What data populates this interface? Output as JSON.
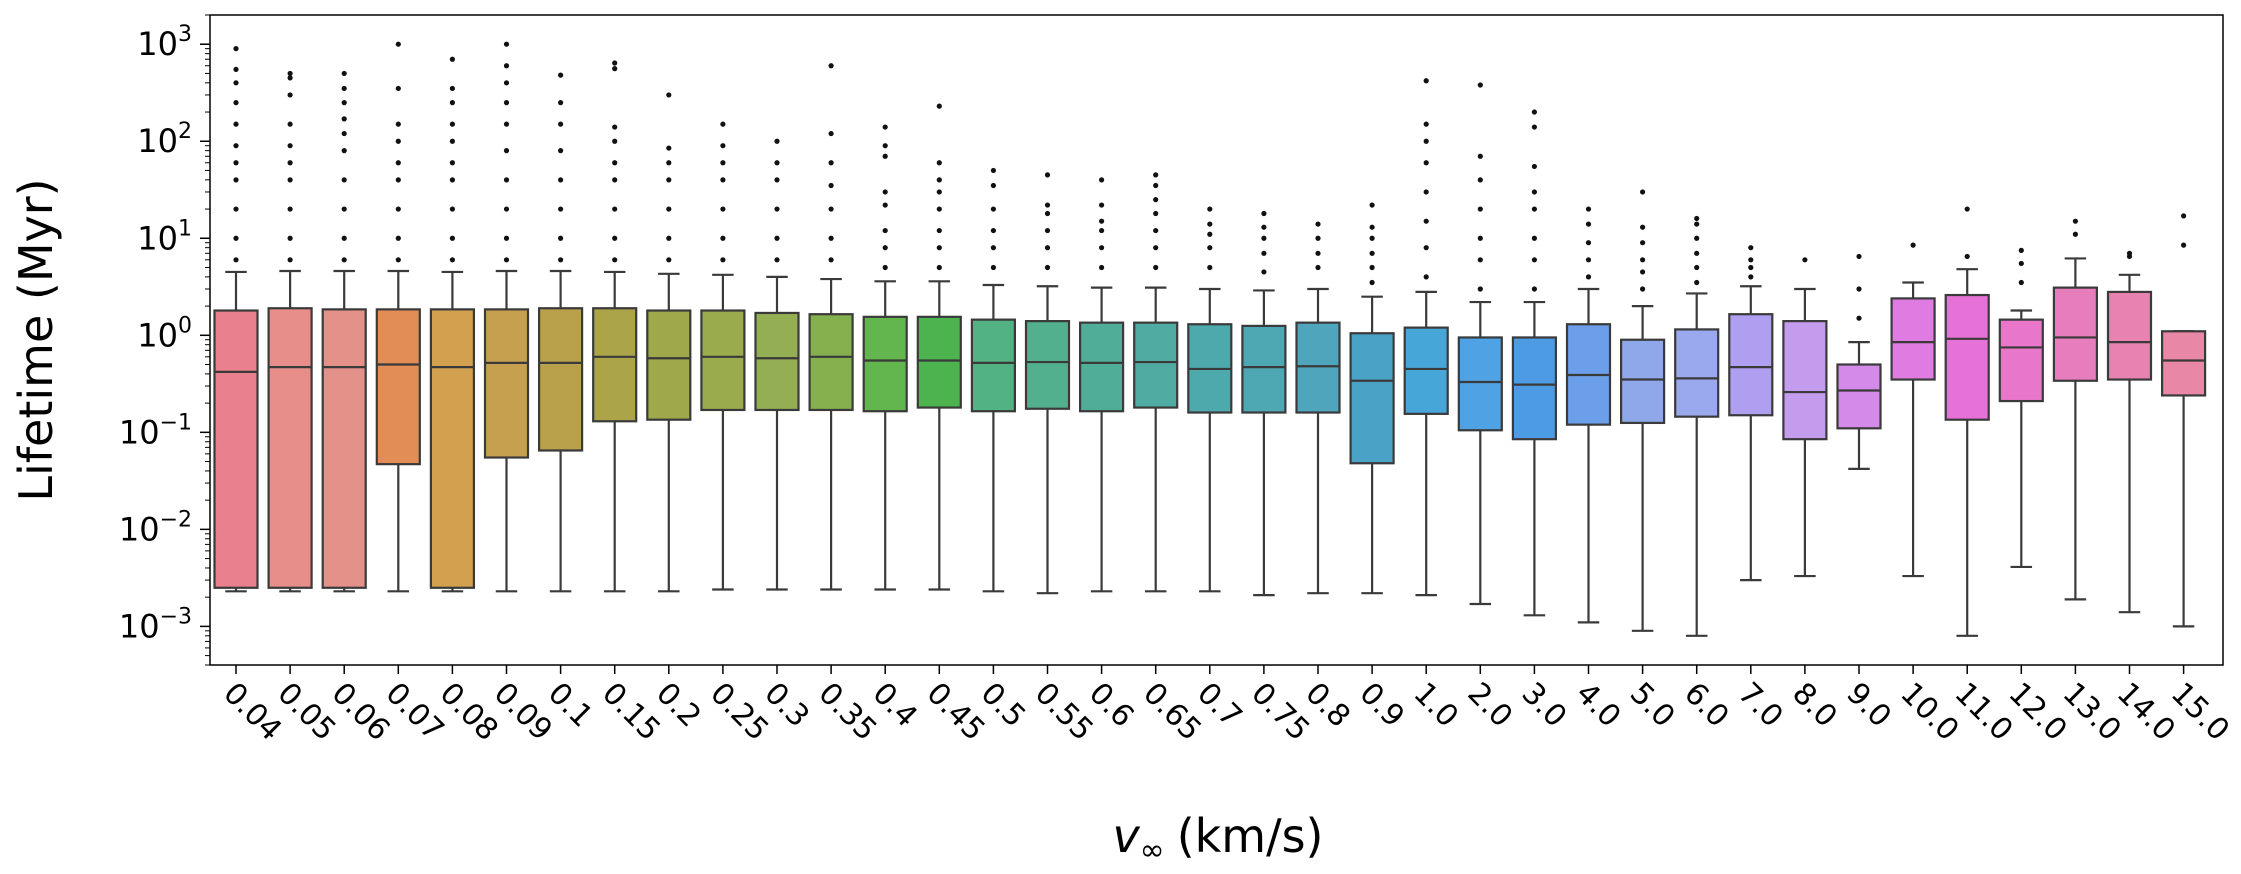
{
  "chart_data": {
    "type": "boxplot",
    "xlabel_symbol": "v",
    "xlabel_subscript": "∞",
    "xlabel_unit": "(km/s)",
    "ylabel": "Lifetime (Myr)",
    "yscale": "log",
    "ylim": [
      0.0004,
      2000
    ],
    "yticks": [
      {
        "value": 0.001,
        "base": "10",
        "exp": "−3"
      },
      {
        "value": 0.01,
        "base": "10",
        "exp": "−2"
      },
      {
        "value": 0.1,
        "base": "10",
        "exp": "−1"
      },
      {
        "value": 1,
        "base": "10",
        "exp": "0"
      },
      {
        "value": 10,
        "base": "10",
        "exp": "1"
      },
      {
        "value": 100,
        "base": "10",
        "exp": "2"
      },
      {
        "value": 1000,
        "base": "10",
        "exp": "3"
      }
    ],
    "grid": false,
    "categories": [
      "0.04",
      "0.05",
      "0.06",
      "0.07",
      "0.08",
      "0.09",
      "0.1",
      "0.15",
      "0.2",
      "0.25",
      "0.3",
      "0.35",
      "0.4",
      "0.45",
      "0.5",
      "0.55",
      "0.6",
      "0.65",
      "0.7",
      "0.75",
      "0.8",
      "0.9",
      "1.0",
      "2.0",
      "3.0",
      "4.0",
      "5.0",
      "6.0",
      "7.0",
      "8.0",
      "9.0",
      "10.0",
      "11.0",
      "12.0",
      "13.0",
      "14.0",
      "15.0"
    ],
    "colors": [
      "#e8808d",
      "#e78e8a",
      "#e49189",
      "#e18d55",
      "#d3a050",
      "#c6a04e",
      "#b9a04b",
      "#aba448",
      "#9fa84a",
      "#9aab4d",
      "#94ae54",
      "#85b04e",
      "#63b54d",
      "#4cb34e",
      "#52b283",
      "#52b08e",
      "#50ad98",
      "#50aba3",
      "#4da9ac",
      "#4ea8b4",
      "#4fa5bb",
      "#4aa3c7",
      "#47a6d8",
      "#4fa2e3",
      "#4d9be3",
      "#6c9fe9",
      "#8ea8e9",
      "#9aa8ee",
      "#b09ef0",
      "#c49cee",
      "#d38ae8",
      "#e07be2",
      "#e672d8",
      "#e877ca",
      "#e87dbd",
      "#e882b0",
      "#e887a6"
    ],
    "boxes": [
      {
        "q1": 0.0025,
        "median": 0.42,
        "q3": 1.8,
        "whislo": 0.0023,
        "whishi": 4.5,
        "fliers": [
          6,
          10,
          20,
          40,
          60,
          90,
          150,
          250,
          400,
          550,
          900
        ]
      },
      {
        "q1": 0.0025,
        "median": 0.47,
        "q3": 1.9,
        "whislo": 0.0023,
        "whishi": 4.6,
        "fliers": [
          6,
          10,
          20,
          40,
          60,
          90,
          150,
          300,
          450,
          500
        ]
      },
      {
        "q1": 0.0025,
        "median": 0.47,
        "q3": 1.85,
        "whislo": 0.0023,
        "whishi": 4.6,
        "fliers": [
          6,
          10,
          20,
          40,
          80,
          120,
          170,
          250,
          350,
          500
        ]
      },
      {
        "q1": 0.047,
        "median": 0.5,
        "q3": 1.85,
        "whislo": 0.0023,
        "whishi": 4.6,
        "fliers": [
          6,
          10,
          20,
          40,
          60,
          100,
          150,
          350,
          1000
        ]
      },
      {
        "q1": 0.0025,
        "median": 0.47,
        "q3": 1.85,
        "whislo": 0.0023,
        "whishi": 4.5,
        "fliers": [
          6,
          10,
          20,
          40,
          60,
          100,
          150,
          250,
          350,
          700
        ]
      },
      {
        "q1": 0.055,
        "median": 0.52,
        "q3": 1.85,
        "whislo": 0.0023,
        "whishi": 4.6,
        "fliers": [
          6,
          10,
          20,
          40,
          80,
          150,
          250,
          400,
          600,
          1000
        ]
      },
      {
        "q1": 0.065,
        "median": 0.52,
        "q3": 1.9,
        "whislo": 0.0023,
        "whishi": 4.6,
        "fliers": [
          6,
          10,
          20,
          40,
          80,
          150,
          250,
          480
        ]
      },
      {
        "q1": 0.13,
        "median": 0.6,
        "q3": 1.9,
        "whislo": 0.0023,
        "whishi": 4.5,
        "fliers": [
          6,
          10,
          20,
          40,
          60,
          100,
          140,
          560,
          640
        ]
      },
      {
        "q1": 0.135,
        "median": 0.58,
        "q3": 1.8,
        "whislo": 0.0023,
        "whishi": 4.3,
        "fliers": [
          6,
          10,
          20,
          40,
          60,
          85,
          300
        ]
      },
      {
        "q1": 0.17,
        "median": 0.6,
        "q3": 1.8,
        "whislo": 0.0024,
        "whishi": 4.2,
        "fliers": [
          6,
          10,
          20,
          40,
          60,
          90,
          150
        ]
      },
      {
        "q1": 0.17,
        "median": 0.58,
        "q3": 1.7,
        "whislo": 0.0024,
        "whishi": 4.0,
        "fliers": [
          6,
          10,
          20,
          40,
          60,
          100
        ]
      },
      {
        "q1": 0.17,
        "median": 0.6,
        "q3": 1.65,
        "whislo": 0.0024,
        "whishi": 3.8,
        "fliers": [
          6,
          10,
          20,
          35,
          60,
          120,
          600
        ]
      },
      {
        "q1": 0.165,
        "median": 0.55,
        "q3": 1.55,
        "whislo": 0.0024,
        "whishi": 3.6,
        "fliers": [
          5,
          8,
          12,
          22,
          30,
          70,
          90,
          140
        ]
      },
      {
        "q1": 0.18,
        "median": 0.55,
        "q3": 1.55,
        "whislo": 0.0024,
        "whishi": 3.6,
        "fliers": [
          5,
          8,
          12,
          20,
          30,
          40,
          60,
          230
        ]
      },
      {
        "q1": 0.165,
        "median": 0.52,
        "q3": 1.45,
        "whislo": 0.0023,
        "whishi": 3.3,
        "fliers": [
          5,
          8,
          12,
          20,
          35,
          50
        ]
      },
      {
        "q1": 0.175,
        "median": 0.53,
        "q3": 1.4,
        "whislo": 0.0022,
        "whishi": 3.2,
        "fliers": [
          5,
          8,
          12,
          18,
          22,
          45
        ]
      },
      {
        "q1": 0.165,
        "median": 0.52,
        "q3": 1.35,
        "whislo": 0.0023,
        "whishi": 3.1,
        "fliers": [
          5,
          8,
          12,
          15,
          22,
          40
        ]
      },
      {
        "q1": 0.18,
        "median": 0.53,
        "q3": 1.35,
        "whislo": 0.0023,
        "whishi": 3.1,
        "fliers": [
          5,
          8,
          12,
          18,
          25,
          35,
          45
        ]
      },
      {
        "q1": 0.16,
        "median": 0.45,
        "q3": 1.3,
        "whislo": 0.0023,
        "whishi": 3.0,
        "fliers": [
          5,
          8,
          11,
          14,
          20
        ]
      },
      {
        "q1": 0.16,
        "median": 0.47,
        "q3": 1.25,
        "whislo": 0.0021,
        "whishi": 2.9,
        "fliers": [
          4.5,
          7,
          10,
          13,
          18
        ]
      },
      {
        "q1": 0.16,
        "median": 0.48,
        "q3": 1.35,
        "whislo": 0.0022,
        "whishi": 3.0,
        "fliers": [
          5,
          7,
          10,
          14
        ]
      },
      {
        "q1": 0.048,
        "median": 0.34,
        "q3": 1.05,
        "whislo": 0.0022,
        "whishi": 2.5,
        "fliers": [
          3.5,
          5,
          7,
          10,
          13,
          22
        ]
      },
      {
        "q1": 0.155,
        "median": 0.45,
        "q3": 1.2,
        "whislo": 0.0021,
        "whishi": 2.8,
        "fliers": [
          4,
          8,
          15,
          30,
          60,
          100,
          150,
          420
        ]
      },
      {
        "q1": 0.105,
        "median": 0.33,
        "q3": 0.95,
        "whislo": 0.0017,
        "whishi": 2.2,
        "fliers": [
          3,
          6,
          10,
          20,
          40,
          70,
          380
        ]
      },
      {
        "q1": 0.085,
        "median": 0.31,
        "q3": 0.95,
        "whislo": 0.0013,
        "whishi": 2.2,
        "fliers": [
          3,
          6,
          10,
          20,
          30,
          55,
          140,
          200
        ]
      },
      {
        "q1": 0.12,
        "median": 0.39,
        "q3": 1.3,
        "whislo": 0.0011,
        "whishi": 3.0,
        "fliers": [
          4,
          6,
          9,
          14,
          20
        ]
      },
      {
        "q1": 0.125,
        "median": 0.35,
        "q3": 0.9,
        "whislo": 0.0009,
        "whishi": 2.0,
        "fliers": [
          3,
          4.5,
          6,
          9,
          13,
          30
        ]
      },
      {
        "q1": 0.145,
        "median": 0.36,
        "q3": 1.15,
        "whislo": 0.0008,
        "whishi": 2.7,
        "fliers": [
          3.5,
          5,
          7,
          10,
          14,
          16
        ]
      },
      {
        "q1": 0.15,
        "median": 0.47,
        "q3": 1.65,
        "whislo": 0.003,
        "whishi": 3.2,
        "fliers": [
          4,
          5,
          6,
          8
        ]
      },
      {
        "q1": 0.085,
        "median": 0.26,
        "q3": 1.4,
        "whislo": 0.0033,
        "whishi": 3.0,
        "fliers": [
          6
        ]
      },
      {
        "q1": 0.11,
        "median": 0.27,
        "q3": 0.5,
        "whislo": 0.042,
        "whishi": 0.85,
        "fliers": [
          1.5,
          3,
          6.5
        ]
      },
      {
        "q1": 0.35,
        "median": 0.85,
        "q3": 2.4,
        "whislo": 0.0033,
        "whishi": 3.5,
        "fliers": [
          8.5
        ]
      },
      {
        "q1": 0.135,
        "median": 0.92,
        "q3": 2.6,
        "whislo": 0.0008,
        "whishi": 4.8,
        "fliers": [
          6.5,
          20
        ]
      },
      {
        "q1": 0.21,
        "median": 0.75,
        "q3": 1.45,
        "whislo": 0.0041,
        "whishi": 1.8,
        "fliers": [
          3.5,
          5.5,
          7.5
        ]
      },
      {
        "q1": 0.34,
        "median": 0.95,
        "q3": 3.1,
        "whislo": 0.0019,
        "whishi": 6.2,
        "fliers": [
          11,
          15
        ]
      },
      {
        "q1": 0.35,
        "median": 0.85,
        "q3": 2.8,
        "whislo": 0.0014,
        "whishi": 4.2,
        "fliers": [
          6.5,
          7
        ]
      },
      {
        "q1": 0.24,
        "median": 0.55,
        "q3": 1.1,
        "whislo": 0.001,
        "whishi": 1.1,
        "fliers": [
          8.5,
          17
        ]
      }
    ]
  }
}
